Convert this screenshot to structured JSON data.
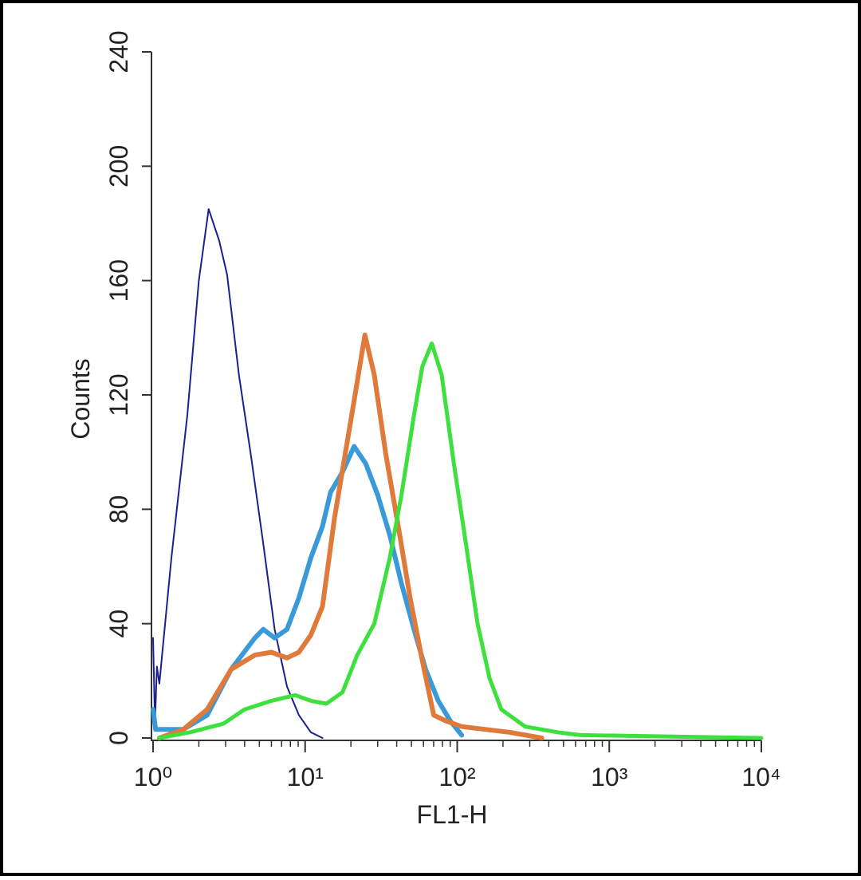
{
  "chart_data": {
    "type": "line",
    "xlabel": "FL1-H",
    "ylabel": "Counts",
    "xscale": "log",
    "xlim": [
      1,
      10000
    ],
    "xticks": [
      {
        "value": 1,
        "label": "10⁰"
      },
      {
        "value": 10,
        "label": "10¹"
      },
      {
        "value": 100,
        "label": "10²"
      },
      {
        "value": 1000,
        "label": "10³"
      },
      {
        "value": 10000,
        "label": "10⁴"
      }
    ],
    "xminorticks": [
      2,
      3,
      4,
      5,
      6,
      7,
      8,
      9,
      20,
      30,
      40,
      50,
      60,
      70,
      80,
      90,
      200,
      300,
      400,
      500,
      600,
      700,
      800,
      900,
      2000,
      3000,
      4000,
      5000,
      6000,
      7000,
      8000,
      9000
    ],
    "ylim": [
      0,
      240
    ],
    "yticks": [
      0,
      40,
      80,
      120,
      160,
      200,
      240
    ],
    "series": [
      {
        "color": "#1c1f8f",
        "width": 2,
        "x": [
          1,
          1.03,
          1.06,
          1.1,
          1.32,
          1.68,
          2.0,
          2.32,
          2.72,
          3.07,
          3.67,
          4.4,
          5.3,
          6.3,
          7.6,
          9.1,
          10.9,
          13
        ],
        "values": [
          35,
          5,
          25,
          19,
          63,
          113,
          160,
          185,
          174,
          162,
          127,
          99,
          68,
          38,
          18,
          8,
          2,
          0
        ]
      },
      {
        "color": "#3a9ad9",
        "width": 6,
        "x": [
          1.0,
          1.04,
          1.58,
          2.27,
          3.26,
          4.67,
          5.3,
          6.3,
          7.6,
          9.1,
          10.9,
          13,
          14.7,
          17.6,
          21,
          25,
          30,
          36,
          43,
          52,
          62,
          75,
          90,
          107
        ],
        "values": [
          10,
          3,
          3,
          8,
          24,
          35,
          38,
          35,
          38,
          49,
          63,
          74,
          86,
          93,
          102,
          96,
          85,
          71,
          54,
          38,
          24,
          13,
          6,
          1
        ]
      },
      {
        "color": "#e07a3a",
        "width": 6,
        "x": [
          1.1,
          1.58,
          2.27,
          3.26,
          4.67,
          6.0,
          7.6,
          9.1,
          10.9,
          13,
          15.6,
          18.7,
          21,
          24.7,
          28.5,
          34,
          41,
          49,
          59,
          70,
          84,
          107,
          154,
          220,
          360
        ],
        "values": [
          0,
          3,
          10,
          24,
          29,
          30,
          28,
          30,
          36,
          46,
          77,
          102,
          118,
          141,
          127,
          99,
          74,
          49,
          27,
          8,
          6,
          4,
          3,
          2,
          0
        ]
      },
      {
        "color": "#3ee03e",
        "width": 5,
        "x": [
          1.1,
          1.75,
          2.9,
          4.0,
          6.0,
          8.6,
          10.9,
          13.8,
          17.6,
          22,
          28.5,
          36,
          43,
          52,
          59,
          68,
          79,
          95,
          114,
          136,
          163,
          195,
          280,
          455,
          650,
          10000
        ],
        "values": [
          0,
          2,
          5,
          10,
          13,
          15,
          13,
          12,
          16,
          29,
          40,
          63,
          85,
          113,
          130,
          138,
          127,
          96,
          68,
          40,
          21,
          10,
          4,
          2,
          1,
          0
        ]
      }
    ]
  }
}
